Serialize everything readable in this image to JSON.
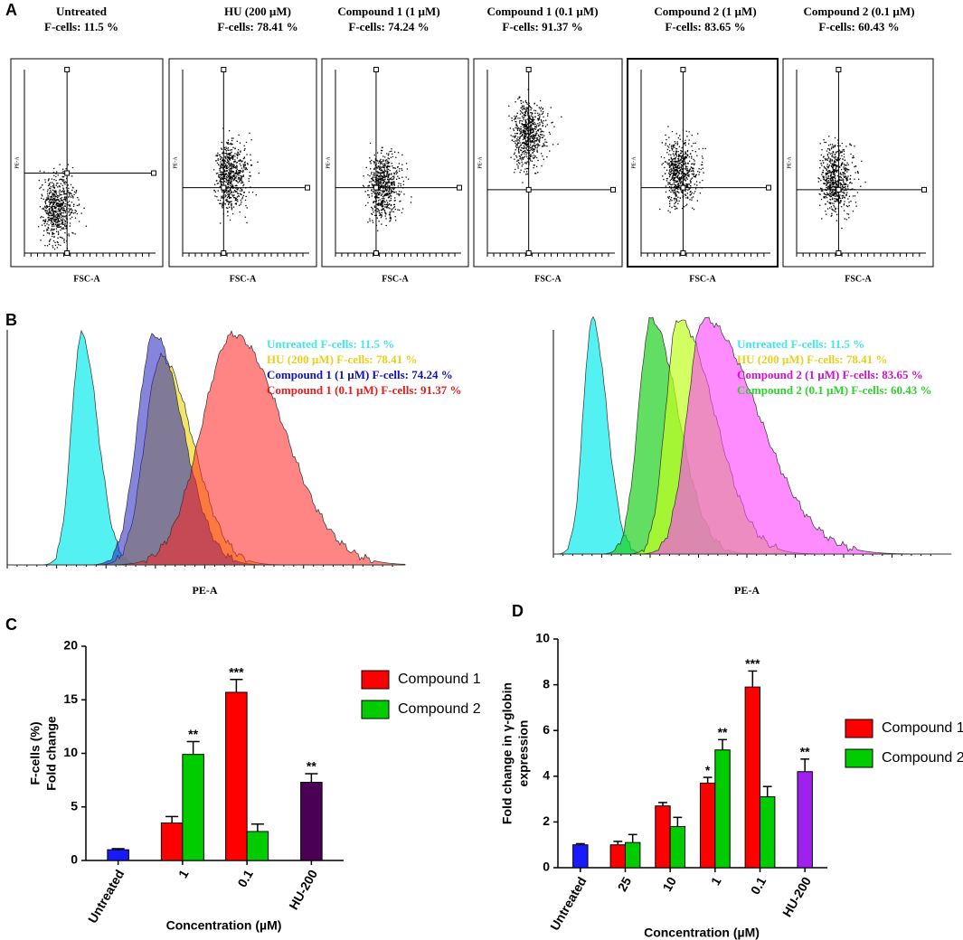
{
  "panel_a": {
    "label": "A",
    "x_label": "FSC-A",
    "y_label": "PE-A",
    "plots": [
      {
        "title": "Untreated",
        "subtitle": "F-cells: 11.5 %"
      },
      {
        "title": "HU (200 µM)",
        "subtitle": "F-cells: 78.41 %"
      },
      {
        "title": "Compound 1 (1 µM)",
        "subtitle": "F-cells: 74.24 %"
      },
      {
        "title": "Compound 1 (0.1 µM)",
        "subtitle": "F-cells: 91.37 %"
      },
      {
        "title": "Compound 2 (1 µM)",
        "subtitle": "F-cells: 83.65 %"
      },
      {
        "title": "Compound 2 (0.1 µM)",
        "subtitle": "F-cells: 60.43 %"
      }
    ]
  },
  "panel_b": {
    "label": "B",
    "x_label": "PE-A",
    "left_legend": [
      {
        "text": "Untreated F-cells: 11.5 %",
        "color": "#40e8e8"
      },
      {
        "text": "HU (200 µM) F-cells: 78.41 %",
        "color": "#e8d020"
      },
      {
        "text": "Compound 1 (1 µM) F-cells: 74.24 %",
        "color": "#1010c0"
      },
      {
        "text": "Compound 1 (0.1 µM) F-cells: 91.37 %",
        "color": "#e02020"
      }
    ],
    "right_legend": [
      {
        "text": "Untreated F-cells: 11.5 %",
        "color": "#40e8e8"
      },
      {
        "text": "HU (200 µM) F-cells: 78.41 %",
        "color": "#e8d020"
      },
      {
        "text": "Compound 2 (1 µM) F-cells: 83.65 %",
        "color": "#d010d0"
      },
      {
        "text": "Compound 2 (0.1 µM) F-cells: 60.43 %",
        "color": "#30d030"
      }
    ]
  },
  "chart_data": [
    {
      "type": "bar",
      "label": "C",
      "ylabel": [
        "F-cells (%)",
        "Fold change"
      ],
      "xlabel": "Concentration (µM)",
      "categories": [
        "Untreated",
        "1",
        "0.1",
        "HU-200"
      ],
      "ylim": [
        0,
        20
      ],
      "yticks": [
        0,
        5,
        10,
        15,
        20
      ],
      "series": [
        {
          "color": "#1a1aff",
          "values": [
            1.0,
            null,
            null,
            null
          ],
          "errors": [
            0.1,
            null,
            null,
            null
          ]
        },
        {
          "name": "Compound 1",
          "color": "#ff0000",
          "values": [
            null,
            3.5,
            15.7,
            null
          ],
          "errors": [
            null,
            0.6,
            1.2,
            null
          ],
          "significance": [
            null,
            null,
            "***",
            null
          ]
        },
        {
          "name": "Compound 2",
          "color": "#00cc00",
          "values": [
            null,
            9.9,
            2.7,
            null
          ],
          "errors": [
            null,
            1.2,
            0.7,
            null
          ],
          "significance": [
            null,
            "**",
            null,
            null
          ]
        },
        {
          "color": "#4b0055",
          "values": [
            null,
            null,
            null,
            7.3
          ],
          "errors": [
            null,
            null,
            null,
            0.8
          ],
          "significance": [
            null,
            null,
            null,
            "**"
          ]
        }
      ]
    },
    {
      "type": "bar",
      "label": "D",
      "ylabel": [
        "Fold change in γ-globin",
        "expression"
      ],
      "xlabel": "Concentration (µM)",
      "categories": [
        "Untreated",
        "25",
        "10",
        "1",
        "0.1",
        "HU-200"
      ],
      "ylim": [
        0,
        10
      ],
      "yticks": [
        0,
        2,
        4,
        6,
        8,
        10
      ],
      "series": [
        {
          "color": "#1a1aff",
          "values": [
            1.0,
            null,
            null,
            null,
            null,
            null
          ],
          "errors": [
            0.05,
            null,
            null,
            null,
            null,
            null
          ]
        },
        {
          "name": "Compound 1",
          "color": "#ff0000",
          "values": [
            null,
            1.0,
            2.7,
            3.7,
            7.9,
            null
          ],
          "errors": [
            null,
            0.15,
            0.15,
            0.25,
            0.7,
            null
          ],
          "significance": [
            null,
            null,
            null,
            "*",
            "***",
            null
          ]
        },
        {
          "name": "Compound 2",
          "color": "#00cc00",
          "values": [
            null,
            1.1,
            1.8,
            5.15,
            3.1,
            null
          ],
          "errors": [
            null,
            0.35,
            0.4,
            0.45,
            0.45,
            null
          ],
          "significance": [
            null,
            null,
            null,
            "**",
            null,
            null
          ]
        },
        {
          "color": "#a020f0",
          "values": [
            null,
            null,
            null,
            null,
            null,
            4.2
          ],
          "errors": [
            null,
            null,
            null,
            null,
            null,
            0.55
          ],
          "significance": [
            null,
            null,
            null,
            null,
            null,
            "**"
          ]
        }
      ]
    }
  ]
}
